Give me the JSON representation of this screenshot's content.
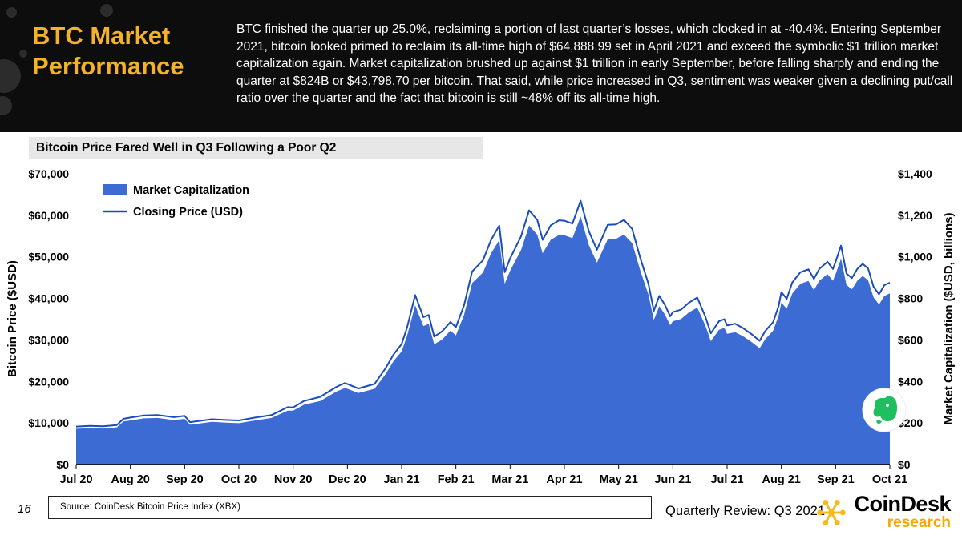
{
  "header": {
    "title_line1": "BTC Market",
    "title_line2": "Performance",
    "body": "BTC finished the quarter up 25.0%, reclaiming a portion of last quarter’s losses, which clocked in at -40.4%. Entering September 2021, bitcoin looked primed to reclaim its all-time high of $64,888.99 set in April 2021 and exceed the symbolic $1 trillion market capitalization again. Market capitalization brushed up against $1 trillion in early September, before falling sharply and ending the quarter at $824B or $43,798.70 per bitcoin. That said, while price increased in Q3, sentiment was weaker given a declining put/call ratio over the quarter and the fact that bitcoin is still ~48% off its all-time high."
  },
  "chart": {
    "title": "Bitcoin Price Fared Well in Q3 Following a Poor Q2"
  },
  "chart_data": {
    "type": "area+line",
    "title": "Bitcoin Price Fared Well in Q3 Following a Poor Q2",
    "x_unit": "months since Jul 2020",
    "x_range": [
      0,
      15
    ],
    "x_tick_labels": [
      "Jul 20",
      "Aug 20",
      "Sep 20",
      "Oct 20",
      "Nov 20",
      "Dec 20",
      "Jan 21",
      "Feb 21",
      "Mar 21",
      "Apr 21",
      "May 21",
      "Jun 21",
      "Jul 21",
      "Aug 21",
      "Sep 21",
      "Oct 21"
    ],
    "y_left": {
      "label": "Bitcoin Price ($USD)",
      "min": 0,
      "max": 70000,
      "step": 10000
    },
    "y_right": {
      "label": "Market Capitalization ($USD, billions)",
      "min": 0,
      "max": 1400,
      "step": 200
    },
    "grid": "off",
    "legend_position": "top-left-inside",
    "x": [
      0,
      0.25,
      0.5,
      0.75,
      0.87,
      1,
      1.25,
      1.5,
      1.8,
      2,
      2.1,
      2.5,
      2.8,
      3,
      3.3,
      3.6,
      3.9,
      4,
      4.2,
      4.5,
      4.8,
      4.95,
      5,
      5.2,
      5.5,
      5.7,
      5.85,
      6,
      6.1,
      6.25,
      6.4,
      6.5,
      6.6,
      6.75,
      6.9,
      7,
      7.15,
      7.3,
      7.5,
      7.65,
      7.8,
      7.9,
      8,
      8.2,
      8.35,
      8.5,
      8.6,
      8.75,
      8.9,
      9,
      9.15,
      9.3,
      9.45,
      9.6,
      9.8,
      9.95,
      10.1,
      10.25,
      10.4,
      10.55,
      10.65,
      10.75,
      10.85,
      10.95,
      11,
      11.15,
      11.3,
      11.45,
      11.6,
      11.7,
      11.85,
      11.95,
      12,
      12.15,
      12.3,
      12.45,
      12.6,
      12.7,
      12.85,
      12.95,
      13,
      13.1,
      13.2,
      13.35,
      13.5,
      13.6,
      13.7,
      13.85,
      13.95,
      14,
      14.1,
      14.2,
      14.3,
      14.4,
      14.5,
      14.6,
      14.7,
      14.8,
      14.9,
      15
    ],
    "series": [
      {
        "name": "Market Capitalization",
        "type": "area",
        "axis": "right",
        "color": "#3B6BD3",
        "values": [
          172,
          175,
          173,
          179,
          207,
          212,
          222,
          224,
          214,
          220,
          192,
          205,
          201,
          199,
          212,
          224,
          259,
          259,
          288,
          306,
          352,
          368,
          365,
          344,
          365,
          434,
          498,
          545,
          620,
          767,
          667,
          677,
          579,
          603,
          645,
          622,
          720,
          874,
          925,
          1017,
          1081,
          870,
          933,
          1032,
          1151,
          1107,
          1017,
          1083,
          1105,
          1104,
          1090,
          1194,
          1057,
          972,
          1085,
          1087,
          1107,
          1066,
          934,
          818,
          696,
          763,
          724,
          671,
          690,
          701,
          733,
          756,
          669,
          594,
          649,
          658,
          630,
          637,
          617,
          590,
          560,
          603,
          645,
          718,
          780,
          750,
          823,
          870,
          884,
          840,
          885,
          917,
          885,
          917,
          991,
          865,
          844,
          885,
          908,
          887,
          805,
          771,
          812,
          824
        ]
      },
      {
        "name": "Closing Price (USD)",
        "type": "line",
        "axis": "left",
        "color": "#1A4CBB",
        "values": [
          9150,
          9300,
          9200,
          9500,
          11000,
          11300,
          11800,
          11900,
          11400,
          11700,
          10200,
          10900,
          10700,
          10600,
          11300,
          11900,
          13800,
          13750,
          15300,
          16300,
          18700,
          19600,
          19400,
          18300,
          19400,
          23100,
          26500,
          29000,
          33000,
          40800,
          35500,
          36000,
          30800,
          32100,
          34300,
          33100,
          38300,
          46500,
          49200,
          54100,
          57500,
          46300,
          49600,
          54900,
          61200,
          58900,
          54100,
          57600,
          58800,
          58700,
          58000,
          63500,
          56200,
          51700,
          57700,
          57800,
          58900,
          56700,
          49700,
          43500,
          37000,
          40600,
          38500,
          35700,
          36700,
          37300,
          39000,
          40200,
          35600,
          31600,
          34500,
          35000,
          33500,
          33900,
          32800,
          31400,
          29800,
          32100,
          34300,
          38200,
          41500,
          39900,
          43800,
          46300,
          47000,
          44700,
          47100,
          48800,
          47100,
          48800,
          52700,
          46000,
          44900,
          47100,
          48300,
          47200,
          42800,
          41000,
          43200,
          43800
        ]
      }
    ]
  },
  "footer": {
    "page_number": "16",
    "source": "Source: CoinDesk Bitcoin Price Index (XBX)",
    "review": "Quarterly Review: Q3 2021",
    "brand": {
      "name": "CoinDesk",
      "sub": "research"
    }
  },
  "colors": {
    "accent_yellow": "#F3B229",
    "header_bg": "#0d0d0d",
    "market_cap_blue": "#3B6BD3",
    "price_line_blue": "#1A4CBB",
    "evernote_green": "#1FBE5F",
    "logo_yellow": "#F8B91C"
  }
}
